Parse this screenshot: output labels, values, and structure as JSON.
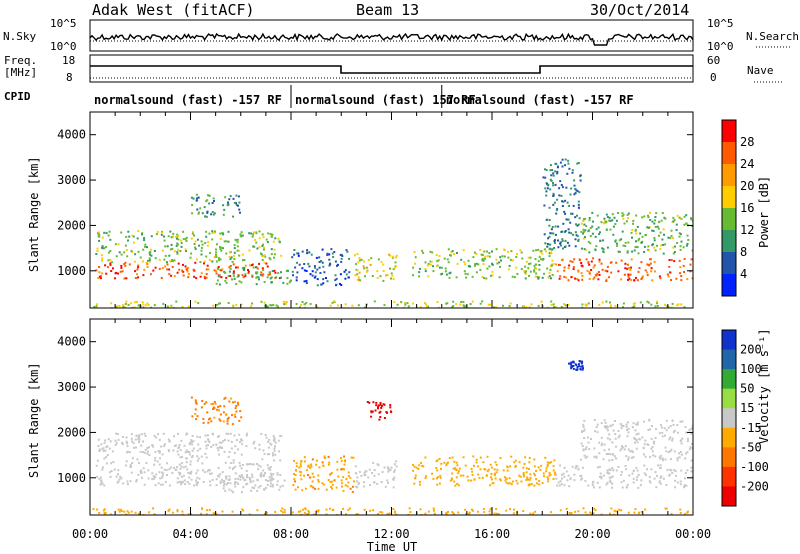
{
  "header": {
    "station": "Adak West (fitACF)",
    "beam": "Beam 13",
    "date": "30/Oct/2014"
  },
  "noise_panel": {
    "left_label": "N.Sky",
    "right_label": "N.Search",
    "left_ticks": [
      "10^5",
      "10^0"
    ],
    "right_ticks": [
      "10^5",
      "10^0"
    ]
  },
  "freq_panel": {
    "left_label_1": "Freq.",
    "left_label_2": "[MHz]",
    "left_ticks": [
      "18",
      "8"
    ],
    "right_label": "Nave",
    "right_ticks": [
      "60",
      "0"
    ]
  },
  "cpid_panel": {
    "label": "CPID",
    "segments": [
      {
        "text": "normalsound (fast) -157 RF",
        "start": 0,
        "end": 8
      },
      {
        "text": "normalsound (fast) 157 RF",
        "start": 8,
        "end": 14
      },
      {
        "text": "normalsound (fast) -157 RF",
        "start": 14,
        "end": 24
      }
    ]
  },
  "power_colorbar": {
    "label": "Power [dB]",
    "ticks": [
      "28",
      "24",
      "20",
      "16",
      "12",
      "8",
      "4"
    ],
    "colors": [
      "#ff0000",
      "#ff5a00",
      "#ff9a00",
      "#ffcc00",
      "#66bb33",
      "#339966",
      "#2255aa",
      "#0022ff"
    ]
  },
  "velocity_colorbar": {
    "label": "Velocity [m s⁻¹]",
    "ticks": [
      "200",
      "100",
      "50",
      "15",
      "-15",
      "-50",
      "-100",
      "-200"
    ],
    "colors": [
      "#1133cc",
      "#2266aa",
      "#33aa33",
      "#99dd44",
      "#c8c8c8",
      "#ffaa00",
      "#ff7700",
      "#ff3300",
      "#ee0000"
    ]
  },
  "chart_data": {
    "type": "heatmap",
    "xlabel": "Time UT",
    "ylabel": "Slant Range [km]",
    "x_ticks": [
      "00:00",
      "04:00",
      "08:00",
      "12:00",
      "16:00",
      "20:00",
      "00:00"
    ],
    "y_ticks": [
      "1000",
      "2000",
      "3000",
      "4000"
    ],
    "xlim_hours": [
      0,
      24
    ],
    "ylim_km": [
      180,
      4500
    ],
    "power_panel": {
      "blobs": [
        {
          "t0": 0.2,
          "t1": 7.6,
          "r0": 850,
          "r1": 1200,
          "dB": 27
        },
        {
          "t0": 0.2,
          "t1": 7.6,
          "r0": 1200,
          "r1": 1900,
          "dB": 14
        },
        {
          "t0": 4.0,
          "t1": 6.0,
          "r0": 2200,
          "r1": 2700,
          "dB": 10
        },
        {
          "t0": 5.0,
          "t1": 8.0,
          "r0": 700,
          "r1": 1100,
          "dB": 12
        },
        {
          "t0": 8.0,
          "t1": 10.3,
          "r0": 700,
          "r1": 1500,
          "dB": 6
        },
        {
          "t0": 10.5,
          "t1": 12.2,
          "r0": 800,
          "r1": 1400,
          "dB": 17
        },
        {
          "t0": 12.8,
          "t1": 18.5,
          "r0": 850,
          "r1": 1500,
          "dB": 14
        },
        {
          "t0": 18.0,
          "t1": 19.5,
          "r0": 1500,
          "r1": 3500,
          "dB": 8
        },
        {
          "t0": 18.5,
          "t1": 24.0,
          "r0": 800,
          "r1": 1300,
          "dB": 26
        },
        {
          "t0": 19.5,
          "t1": 24.0,
          "r0": 1400,
          "r1": 2300,
          "dB": 13
        },
        {
          "t0": 0.0,
          "t1": 24.0,
          "r0": 200,
          "r1": 350,
          "dB": 16
        }
      ]
    },
    "velocity_panel": {
      "blobs": [
        {
          "t0": 0.2,
          "t1": 7.6,
          "r0": 850,
          "r1": 2000,
          "v": 0
        },
        {
          "t0": 4.0,
          "t1": 6.0,
          "r0": 2200,
          "r1": 2800,
          "v": -60
        },
        {
          "t0": 5.0,
          "t1": 8.0,
          "r0": 700,
          "r1": 1100,
          "v": 0
        },
        {
          "t0": 8.0,
          "t1": 10.5,
          "r0": 700,
          "r1": 1500,
          "v": -40
        },
        {
          "t0": 10.5,
          "t1": 12.2,
          "r0": 800,
          "r1": 1400,
          "v": 0
        },
        {
          "t0": 11.0,
          "t1": 12.0,
          "r0": 2300,
          "r1": 2700,
          "v": -250
        },
        {
          "t0": 12.8,
          "t1": 18.5,
          "r0": 850,
          "r1": 1500,
          "v": -30
        },
        {
          "t0": 18.5,
          "t1": 24.0,
          "r0": 800,
          "r1": 1300,
          "v": 0
        },
        {
          "t0": 19.5,
          "t1": 24.0,
          "r0": 1400,
          "r1": 2300,
          "v": 0
        },
        {
          "t0": 19.0,
          "t1": 19.6,
          "r0": 3400,
          "r1": 3600,
          "v": 220
        },
        {
          "t0": 0.0,
          "t1": 24.0,
          "r0": 200,
          "r1": 350,
          "v": -30
        }
      ]
    }
  }
}
